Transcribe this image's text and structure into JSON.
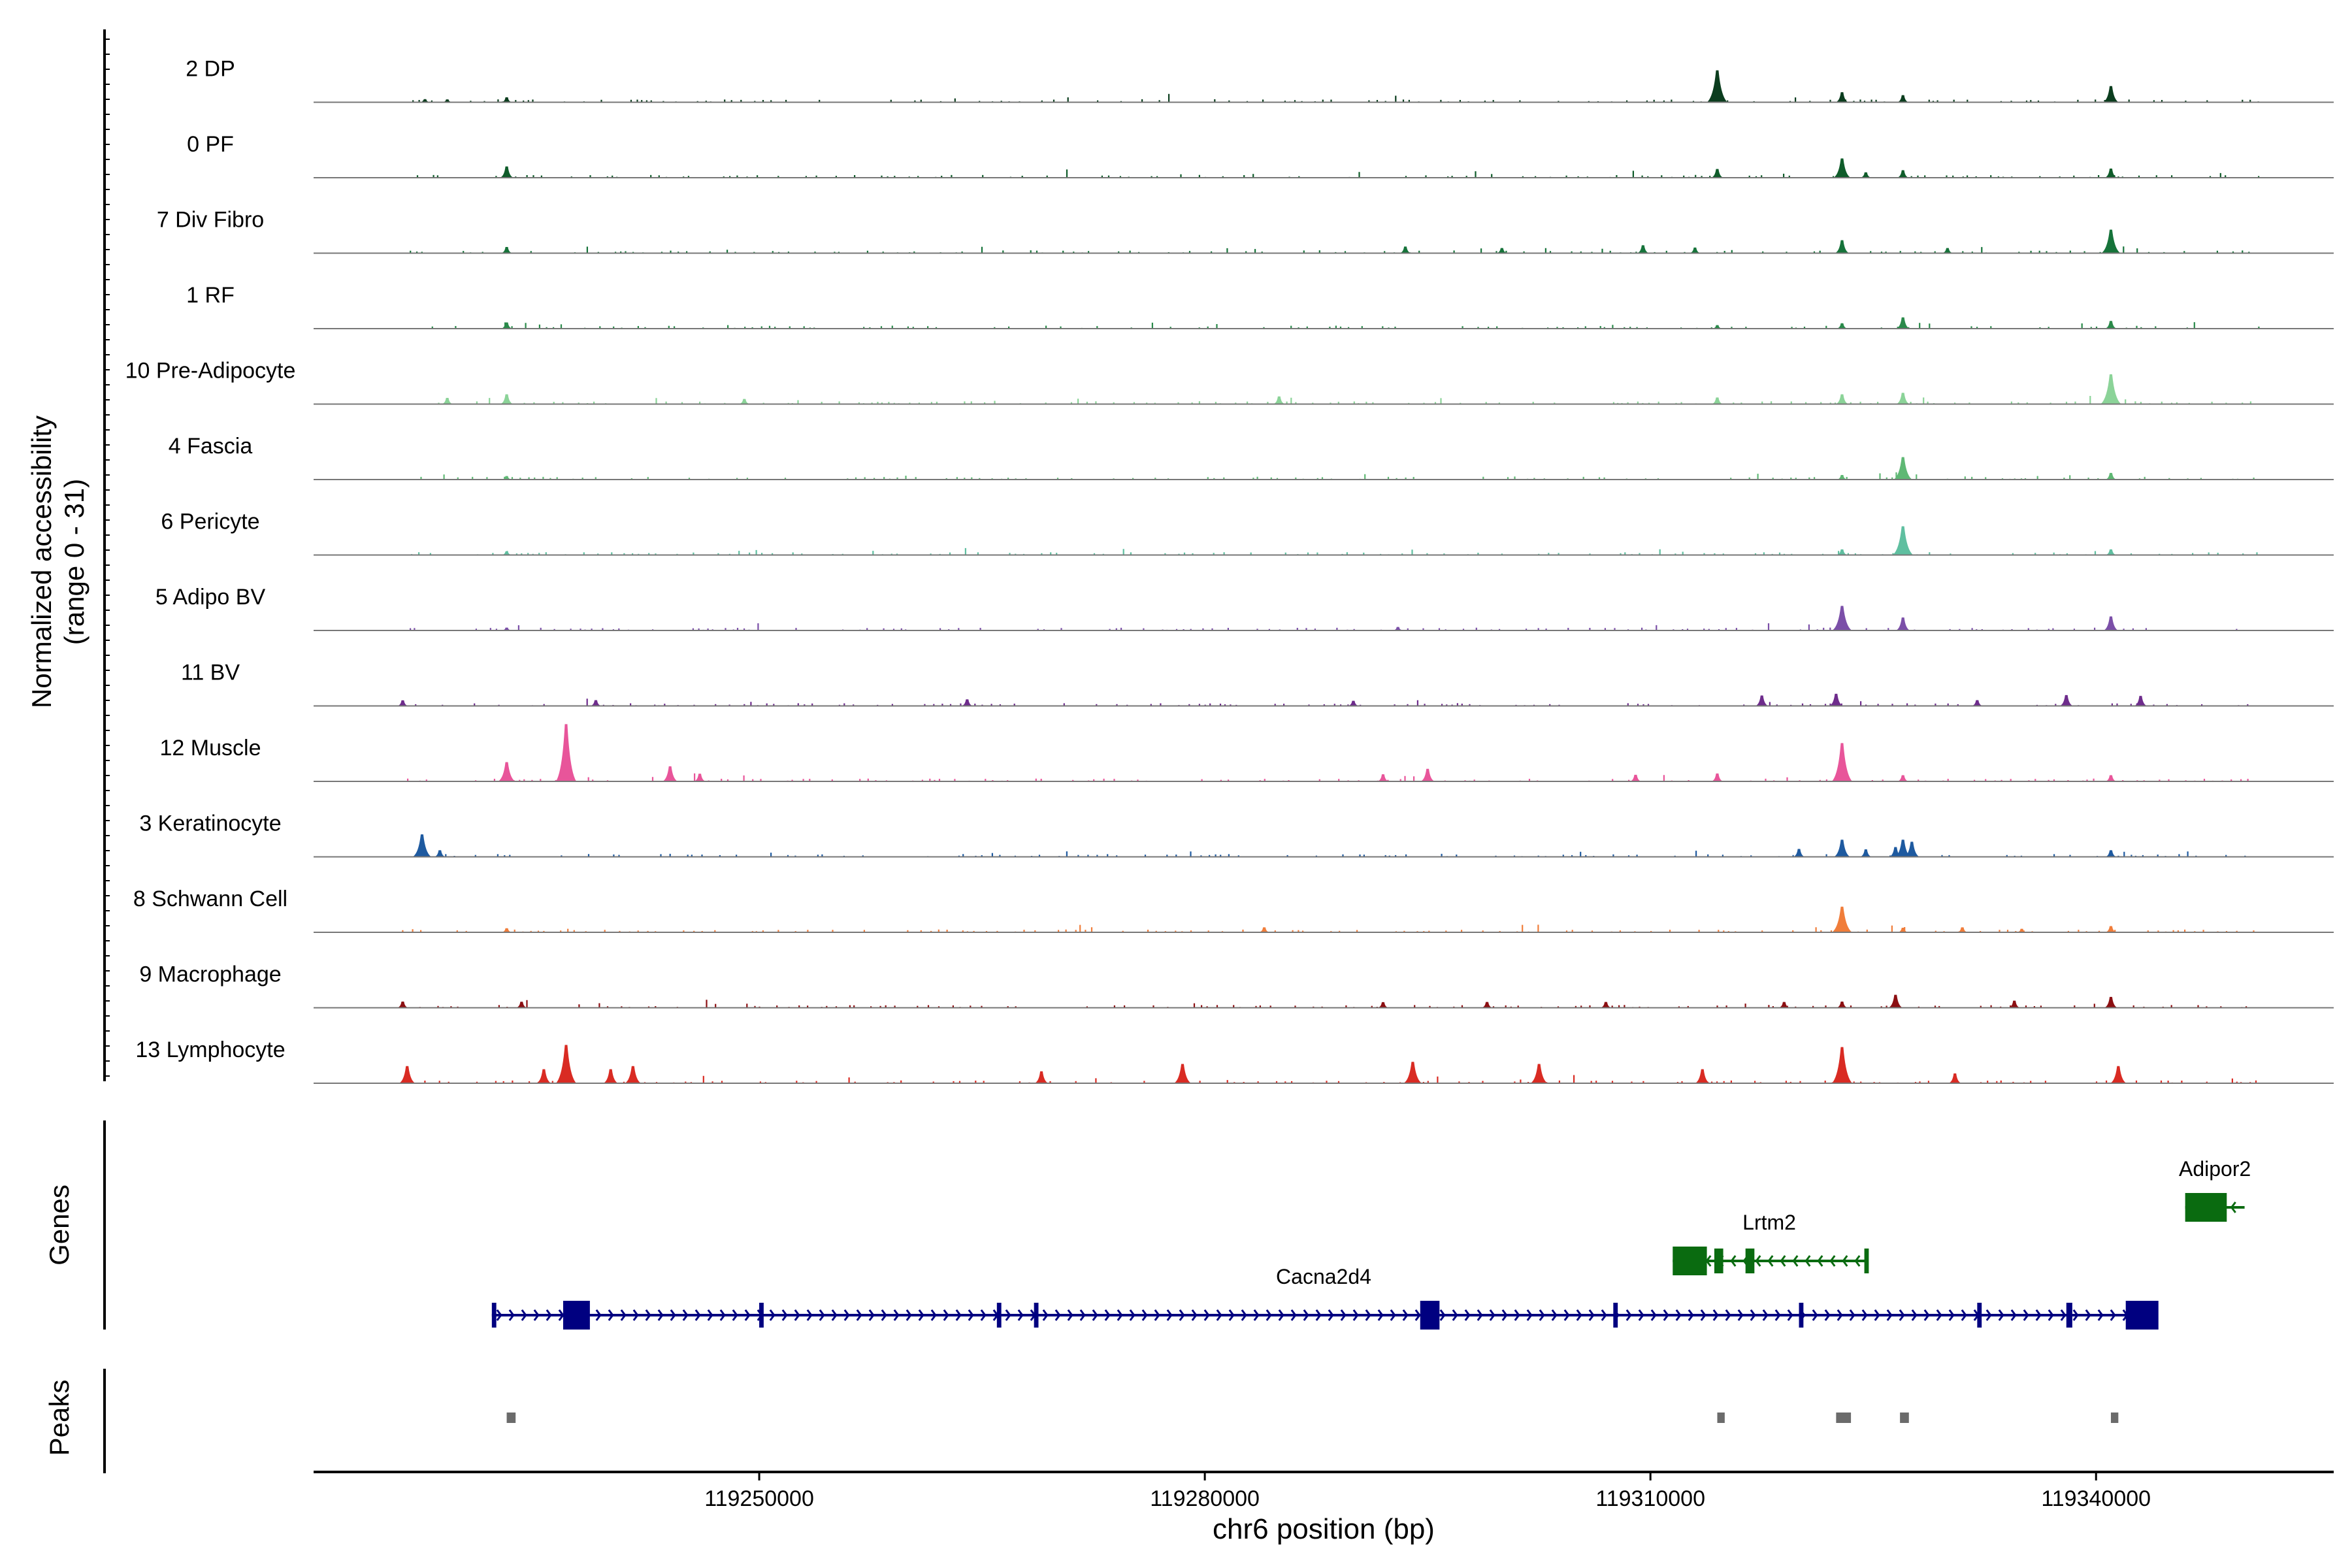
{
  "chart_data": {
    "type": "area",
    "xlabel": "chr6 position (bp)",
    "ylabel": "Normalized accessibility",
    "ylabel_range": "(range 0 - 31)",
    "xlim": [
      119220000,
      119356000
    ],
    "ylim": [
      0,
      31
    ],
    "x_ticks": [
      119250000,
      119280000,
      119310000,
      119340000
    ],
    "x_tick_labels": [
      "119250000",
      "119280000",
      "119310000",
      "119340000"
    ],
    "panel_labels": {
      "genes": "Genes",
      "peaks": "Peaks"
    },
    "tracks": [
      {
        "label": "2 DP",
        "color": "#0b3d1e",
        "peaks": [
          [
            119227500,
            1.3
          ],
          [
            119229000,
            1.2
          ],
          [
            119233000,
            2.2
          ],
          [
            119314500,
            15
          ],
          [
            119322900,
            4.6
          ],
          [
            119327000,
            3.2
          ],
          [
            119341000,
            7.5
          ]
        ]
      },
      {
        "label": "0 PF",
        "color": "#0f5c2a",
        "peaks": [
          [
            119233000,
            5.2
          ],
          [
            119314500,
            4.0
          ],
          [
            119322900,
            9.0
          ],
          [
            119324500,
            2.4
          ],
          [
            119327000,
            3.4
          ],
          [
            119341000,
            4.2
          ]
        ]
      },
      {
        "label": "7 Div Fibro",
        "color": "#16733a",
        "peaks": [
          [
            119233000,
            2.8
          ],
          [
            119293500,
            3.0
          ],
          [
            119300000,
            2.3
          ],
          [
            119309500,
            3.6
          ],
          [
            119313000,
            2.5
          ],
          [
            119322900,
            6.0
          ],
          [
            119330000,
            2.3
          ],
          [
            119341000,
            11.0
          ]
        ]
      },
      {
        "label": "1 RF",
        "color": "#2a8a4a",
        "peaks": [
          [
            119233000,
            2.8
          ],
          [
            119314500,
            1.5
          ],
          [
            119322900,
            2.4
          ],
          [
            119327000,
            5.2
          ],
          [
            119341000,
            3.5
          ]
        ]
      },
      {
        "label": "10 Pre-Adipocyte",
        "color": "#8bd398",
        "peaks": [
          [
            119229000,
            2.8
          ],
          [
            119233000,
            4.5
          ],
          [
            119249000,
            2.3
          ],
          [
            119285000,
            3.5
          ],
          [
            119314500,
            3.0
          ],
          [
            119322900,
            4.5
          ],
          [
            119327000,
            5.2
          ],
          [
            119341000,
            14.0
          ]
        ]
      },
      {
        "label": "4 Fascia",
        "color": "#5fb874",
        "peaks": [
          [
            119233000,
            1.5
          ],
          [
            119322900,
            2.0
          ],
          [
            119327000,
            10.5
          ],
          [
            119341000,
            3.0
          ]
        ]
      },
      {
        "label": "6 Pericyte",
        "color": "#5fbfa0",
        "peaks": [
          [
            119233000,
            1.6
          ],
          [
            119322900,
            2.5
          ],
          [
            119327000,
            13.5
          ],
          [
            119341000,
            2.5
          ]
        ]
      },
      {
        "label": "5 Adipo BV",
        "color": "#7b4fa8",
        "peaks": [
          [
            119233000,
            1.2
          ],
          [
            119293000,
            1.5
          ],
          [
            119322900,
            11.5
          ],
          [
            119327000,
            6.0
          ],
          [
            119341000,
            6.5
          ]
        ]
      },
      {
        "label": "11 BV",
        "color": "#6e2c8c",
        "peaks": [
          [
            119226000,
            2.5
          ],
          [
            119239000,
            2.6
          ],
          [
            119264000,
            3.0
          ],
          [
            119290000,
            2.3
          ],
          [
            119317500,
            4.8
          ],
          [
            119322500,
            5.6
          ],
          [
            119332000,
            2.6
          ],
          [
            119338000,
            5.0
          ],
          [
            119343000,
            4.6
          ]
        ]
      },
      {
        "label": "12 Muscle",
        "color": "#e8559a",
        "peaks": [
          [
            119233000,
            9.0
          ],
          [
            119237000,
            27.0
          ],
          [
            119244000,
            7.0
          ],
          [
            119246000,
            3.5
          ],
          [
            119292000,
            3.2
          ],
          [
            119295000,
            5.8
          ],
          [
            119309000,
            3.0
          ],
          [
            119314500,
            3.6
          ],
          [
            119322900,
            18.0
          ],
          [
            119327000,
            2.8
          ],
          [
            119341000,
            2.8
          ]
        ]
      },
      {
        "label": "3 Keratinocyte",
        "color": "#1e5aa0",
        "peaks": [
          [
            119227300,
            10.5
          ],
          [
            119228500,
            3.0
          ],
          [
            119320000,
            3.6
          ],
          [
            119322900,
            8.0
          ],
          [
            119324500,
            3.4
          ],
          [
            119326500,
            4.5
          ],
          [
            119327000,
            8.0
          ],
          [
            119327600,
            7.0
          ],
          [
            119341000,
            3.0
          ]
        ]
      },
      {
        "label": "8 Schwann Cell",
        "color": "#f07d3a",
        "peaks": [
          [
            119233000,
            1.8
          ],
          [
            119284000,
            2.2
          ],
          [
            119322900,
            12.0
          ],
          [
            119327000,
            2.0
          ],
          [
            119331000,
            2.2
          ],
          [
            119335000,
            1.5
          ],
          [
            119341000,
            2.8
          ]
        ]
      },
      {
        "label": "9 Macrophage",
        "color": "#8c0f12",
        "peaks": [
          [
            119226000,
            2.8
          ],
          [
            119234000,
            2.7
          ],
          [
            119292000,
            2.5
          ],
          [
            119299000,
            2.6
          ],
          [
            119307000,
            2.6
          ],
          [
            119319000,
            2.6
          ],
          [
            119322900,
            2.8
          ],
          [
            119326500,
            6.0
          ],
          [
            119334500,
            3.2
          ],
          [
            119341000,
            5.0
          ]
        ]
      },
      {
        "label": "13 Lymphocyte",
        "color": "#d92b23",
        "peaks": [
          [
            119226300,
            8.0
          ],
          [
            119235500,
            6.5
          ],
          [
            119237000,
            18.0
          ],
          [
            119240000,
            6.5
          ],
          [
            119241500,
            8.0
          ],
          [
            119269000,
            5.5
          ],
          [
            119278500,
            9.0
          ],
          [
            119294000,
            10.0
          ],
          [
            119302500,
            9.0
          ],
          [
            119313500,
            6.5
          ],
          [
            119322900,
            17.0
          ],
          [
            119330500,
            4.5
          ],
          [
            119341500,
            8.0
          ]
        ]
      }
    ],
    "genes": [
      {
        "name": "Adipor2",
        "strand": "-",
        "color": "#0a6b10",
        "start": 119346000,
        "end": 119350000,
        "row": 0,
        "exons": [
          [
            119346000,
            119348800
          ]
        ]
      },
      {
        "name": "Lrtm2",
        "strand": "-",
        "color": "#0a6b10",
        "start": 119311500,
        "end": 119324500,
        "row": 1,
        "exons": [
          [
            119311500,
            119313800
          ],
          [
            119314300,
            119314900
          ],
          [
            119316400,
            119317000
          ],
          [
            119324400,
            119324700
          ]
        ]
      },
      {
        "name": "Cacna2d4",
        "strand": "+",
        "color": "#000080",
        "start": 119232000,
        "end": 119344000,
        "row": 2,
        "exons": [
          [
            119232000,
            119232300
          ],
          [
            119236800,
            119238600
          ],
          [
            119250000,
            119250300
          ],
          [
            119266000,
            119266300
          ],
          [
            119268500,
            119268800
          ],
          [
            119294500,
            119295800
          ],
          [
            119307500,
            119307800
          ],
          [
            119320000,
            119320300
          ],
          [
            119332000,
            119332300
          ],
          [
            119338000,
            119338400
          ],
          [
            119342000,
            119344200
          ]
        ]
      }
    ],
    "peaks_track": [
      [
        119233000,
        119233600
      ],
      [
        119314500,
        119315000
      ],
      [
        119322500,
        119323500
      ],
      [
        119326800,
        119327400
      ],
      [
        119341000,
        119341500
      ]
    ]
  }
}
